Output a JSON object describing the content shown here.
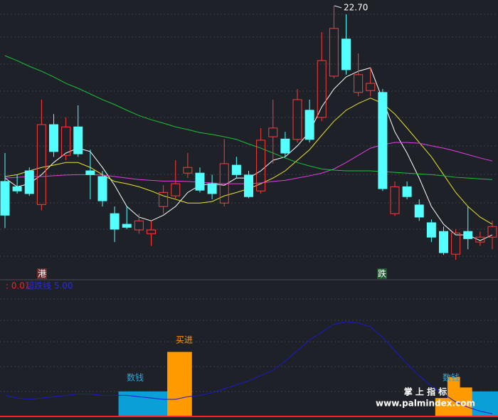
{
  "chart_data": [
    {
      "type": "candlestick",
      "open": [
        18.06,
        17.92,
        18.34,
        17.45,
        19.56,
        18.75,
        19.5,
        18.34,
        18.19,
        17.21,
        16.93,
        16.78,
        16.68,
        17.4,
        17.68,
        18.28,
        18.28,
        18.0,
        17.49,
        18.49,
        18.23,
        17.81,
        19.24,
        19.18,
        19.17,
        19.94,
        19.75,
        20.84,
        21.82,
        20.41,
        20.46,
        20.41,
        17.21,
        17.92,
        17.44,
        16.97,
        16.74,
        16.14,
        16.74,
        16.46,
        16.59
      ],
      "high": [
        18.81,
        18.24,
        18.43,
        20.22,
        19.84,
        19.75,
        20.07,
        18.9,
        18.34,
        17.4,
        17.4,
        17.21,
        17.02,
        17.96,
        18.62,
        18.81,
        18.43,
        18.24,
        19.18,
        18.71,
        18.34,
        19.47,
        20.22,
        19.37,
        20.5,
        20.22,
        22.0,
        22.7,
        22.47,
        21.44,
        21.06,
        20.5,
        18.06,
        18.06,
        17.59,
        17.06,
        16.87,
        16.8,
        17.4,
        16.74,
        17.02
      ],
      "low": [
        16.83,
        17.74,
        17.68,
        17.3,
        18.71,
        18.62,
        18.71,
        17.59,
        17.4,
        16.46,
        16.8,
        16.68,
        16.36,
        17.21,
        17.59,
        18.15,
        17.77,
        17.59,
        17.4,
        18.15,
        17.62,
        17.74,
        18.53,
        18.71,
        19.09,
        19.09,
        19.65,
        20.78,
        20.88,
        20.31,
        20.31,
        17.81,
        17.15,
        17.59,
        17.02,
        16.46,
        16.12,
        15.99,
        16.27,
        16.36,
        16.27
      ],
      "close": [
        17.17,
        17.81,
        17.74,
        19.56,
        18.85,
        19.5,
        18.79,
        18.24,
        17.55,
        16.8,
        16.85,
        17.02,
        16.78,
        17.77,
        18.0,
        18.43,
        17.83,
        17.74,
        18.53,
        18.24,
        17.66,
        19.15,
        19.47,
        18.81,
        20.22,
        19.17,
        21.25,
        22.1,
        21.01,
        20.88,
        20.65,
        17.87,
        17.92,
        17.66,
        17.12,
        16.59,
        16.18,
        16.7,
        16.55,
        16.59,
        16.87
      ],
      "up_color": "#ff3b3b",
      "down_color": "#54ffff",
      "ylim": [
        15.86,
        22.85
      ],
      "max_label": {
        "value": 22.7,
        "label": "22.70"
      },
      "lines": [
        {
          "color": "#ffffff",
          "values": [
            18.15,
            17.92,
            18.0,
            18.24,
            18.56,
            18.81,
            18.94,
            18.85,
            18.43,
            17.96,
            17.4,
            17.12,
            17.02,
            17.17,
            17.4,
            17.77,
            17.96,
            18.0,
            17.96,
            18.15,
            18.15,
            18.34,
            18.62,
            18.71,
            19.0,
            19.37,
            20.03,
            20.5,
            20.82,
            20.97,
            21.06,
            20.22,
            19.37,
            18.81,
            18.15,
            17.4,
            16.93,
            16.65,
            16.65,
            16.5,
            16.65
          ]
        },
        {
          "color": "#e8e32a",
          "values": [
            18.19,
            18.24,
            18.34,
            18.43,
            18.49,
            18.56,
            18.56,
            18.43,
            18.24,
            18.06,
            18.0,
            17.92,
            17.81,
            17.68,
            17.59,
            17.49,
            17.49,
            17.53,
            17.68,
            17.77,
            17.87,
            18.0,
            18.15,
            18.34,
            18.62,
            18.9,
            19.28,
            19.65,
            19.94,
            20.12,
            20.26,
            20.12,
            19.84,
            19.47,
            19.09,
            18.71,
            18.24,
            17.77,
            17.4,
            17.12,
            16.93
          ]
        },
        {
          "color": "#e23ee2",
          "values": [
            18.15,
            18.17,
            18.19,
            18.19,
            18.21,
            18.23,
            18.24,
            18.24,
            18.23,
            18.19,
            18.15,
            18.11,
            18.09,
            18.07,
            18.07,
            18.06,
            18.04,
            18.02,
            18.0,
            18.0,
            18.0,
            18.02,
            18.06,
            18.09,
            18.15,
            18.21,
            18.28,
            18.39,
            18.56,
            18.75,
            18.94,
            19.03,
            19.09,
            19.09,
            19.07,
            19.0,
            18.94,
            18.86,
            18.77,
            18.68,
            18.6
          ]
        },
        {
          "color": "#19c23a",
          "values": [
            21.38,
            21.25,
            21.1,
            20.97,
            20.82,
            20.65,
            20.52,
            20.37,
            20.22,
            20.09,
            19.94,
            19.8,
            19.69,
            19.6,
            19.5,
            19.43,
            19.35,
            19.3,
            19.24,
            19.17,
            19.05,
            18.94,
            18.81,
            18.68,
            18.56,
            18.47,
            18.39,
            18.36,
            18.34,
            18.34,
            18.34,
            18.32,
            18.3,
            18.28,
            18.26,
            18.24,
            18.21,
            18.17,
            18.15,
            18.13,
            18.11
          ]
        }
      ],
      "markers": [
        {
          "label": "港",
          "color": "#ff3b3b"
        },
        {
          "label": "跌",
          "color": "#19c23a"
        }
      ]
    },
    {
      "type": "bar",
      "ylim": [
        0,
        100
      ],
      "legend_texts": [
        {
          "text": ": 0.01",
          "color": "#ff2020"
        },
        {
          "text": "超跌线 5.00",
          "color": "#2a2ae0"
        }
      ],
      "series": [
        {
          "color": "#0b9fd8",
          "values": [
            null,
            null,
            null,
            null,
            null,
            null,
            null,
            null,
            null,
            19,
            19,
            19,
            19,
            null,
            null,
            null,
            null,
            null,
            null,
            null,
            null,
            null,
            null,
            null,
            null,
            null,
            null,
            null,
            null,
            null,
            null,
            null,
            null,
            null,
            null,
            null,
            null,
            null,
            19,
            19,
            19
          ]
        },
        {
          "color": "#ff9a00",
          "values": [
            null,
            null,
            null,
            null,
            null,
            null,
            null,
            null,
            null,
            null,
            null,
            null,
            null,
            49,
            49,
            null,
            null,
            null,
            null,
            null,
            null,
            null,
            null,
            null,
            null,
            null,
            null,
            null,
            null,
            null,
            null,
            null,
            null,
            null,
            null,
            14,
            30,
            22,
            null,
            null,
            null
          ]
        }
      ],
      "line": {
        "color": "#1a1acc",
        "values": [
          16,
          14,
          13,
          14,
          15,
          16,
          17,
          17,
          16,
          16,
          16,
          15,
          14,
          13,
          13,
          15,
          16,
          18,
          21,
          24,
          27,
          31,
          35,
          42,
          50,
          58,
          64,
          70,
          72,
          71,
          68,
          60,
          50,
          40,
          31,
          23,
          17,
          11,
          7,
          4,
          2
        ]
      },
      "annotations": [
        {
          "text": "数钱",
          "color": "#2aa8e0"
        },
        {
          "text": "买进",
          "color": "#ff9a00"
        },
        {
          "text": "数钱",
          "color": "#2aa8e0"
        }
      ]
    }
  ],
  "watermark": {
    "title": "掌 上 指 标",
    "url": "www.palmindex.com"
  }
}
